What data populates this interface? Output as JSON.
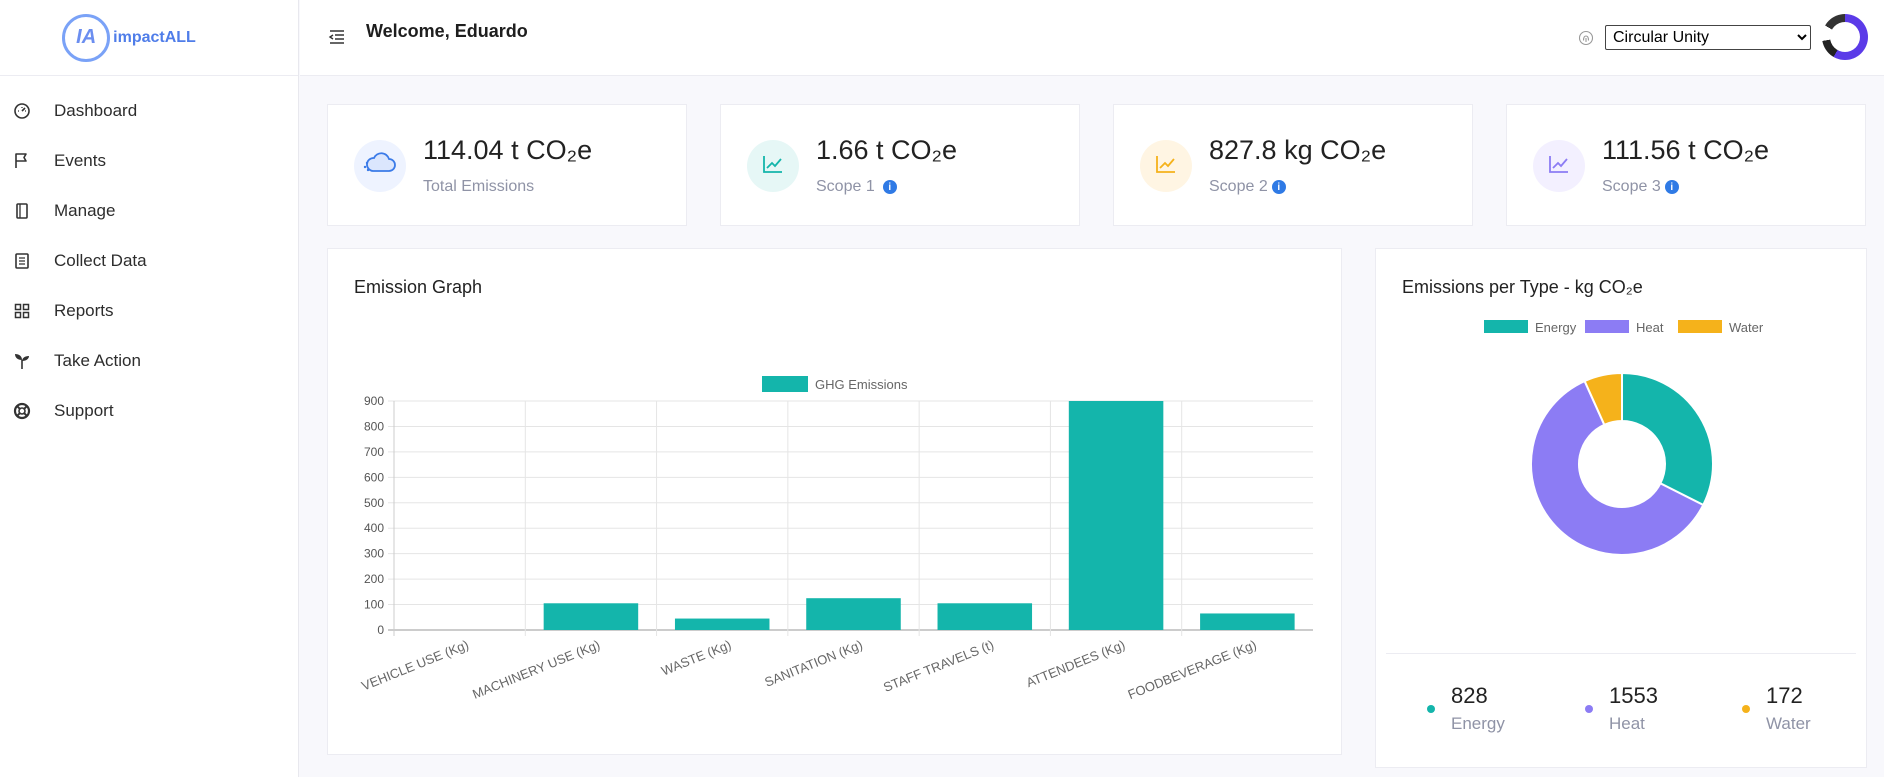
{
  "app": {
    "logo_letters": "IA",
    "logo_text": "impactALL"
  },
  "sidebar": {
    "items": [
      {
        "label": "Dashboard",
        "icon": "gauge-icon"
      },
      {
        "label": "Events",
        "icon": "flag-icon"
      },
      {
        "label": "Manage",
        "icon": "book-icon"
      },
      {
        "label": "Collect Data",
        "icon": "list-icon"
      },
      {
        "label": "Reports",
        "icon": "grid-icon"
      },
      {
        "label": "Take Action",
        "icon": "sprout-icon"
      },
      {
        "label": "Support",
        "icon": "lifebuoy-icon"
      }
    ]
  },
  "header": {
    "welcome": "Welcome, Eduardo",
    "organization": {
      "selected": "Circular Unity",
      "options": [
        "Circular Unity"
      ]
    }
  },
  "stats": [
    {
      "value": "114.04 t CO₂e",
      "label": "Total Emissions",
      "info": false,
      "icon": "cloud-icon",
      "icon_bg": "#eef3ff",
      "icon_color": "#3b7be8"
    },
    {
      "value": "1.66 t CO₂e",
      "label": "Scope 1",
      "info": true,
      "icon": "line-chart-icon",
      "icon_bg": "#e6f7f6",
      "icon_color": "#14b5ab"
    },
    {
      "value": "827.8 kg CO₂e",
      "label": "Scope 2",
      "info": true,
      "icon": "line-chart-icon",
      "icon_bg": "#fff5e3",
      "icon_color": "#f5b21b"
    },
    {
      "value": "111.56 t CO₂e",
      "label": "Scope 3",
      "info": true,
      "icon": "line-chart-icon",
      "icon_bg": "#f3f0ff",
      "icon_color": "#8c7cf4"
    }
  ],
  "emission_graph": {
    "title": "Emission Graph"
  },
  "emissions_per_type": {
    "title": "Emissions per Type - kg CO₂e",
    "totals": [
      {
        "value": "828",
        "label": "Energy",
        "color": "#14b5ab"
      },
      {
        "value": "1553",
        "label": "Heat",
        "color": "#8c7cf4"
      },
      {
        "value": "172",
        "label": "Water",
        "color": "#f5b21b"
      }
    ]
  },
  "chart_data": [
    {
      "type": "bar",
      "title": "Emission Graph",
      "categories": [
        "VEHICLE USE (Kg)",
        "MACHINERY USE (Kg)",
        "WASTE (Kg)",
        "SANITATION (Kg)",
        "STAFF TRAVELS (t)",
        "ATTENDEES (Kg)",
        "FOODBEVERAGE (Kg)"
      ],
      "series": [
        {
          "name": "GHG Emissions",
          "values": [
            0,
            105,
            45,
            125,
            105,
            900,
            65
          ],
          "color": "#14b5ab"
        }
      ],
      "ylim": [
        0,
        900
      ],
      "yticks": [
        0,
        100,
        200,
        300,
        400,
        500,
        600,
        700,
        800,
        900
      ],
      "xlabel": "",
      "ylabel": "",
      "legend": "top"
    },
    {
      "type": "pie",
      "donut": true,
      "title": "Emissions per Type - kg CO₂e",
      "labels": [
        "Energy",
        "Heat",
        "Water"
      ],
      "values": [
        828,
        1553,
        172
      ],
      "colors": [
        "#14b5ab",
        "#8c7cf4",
        "#f5b21b"
      ],
      "legend": "top"
    }
  ]
}
